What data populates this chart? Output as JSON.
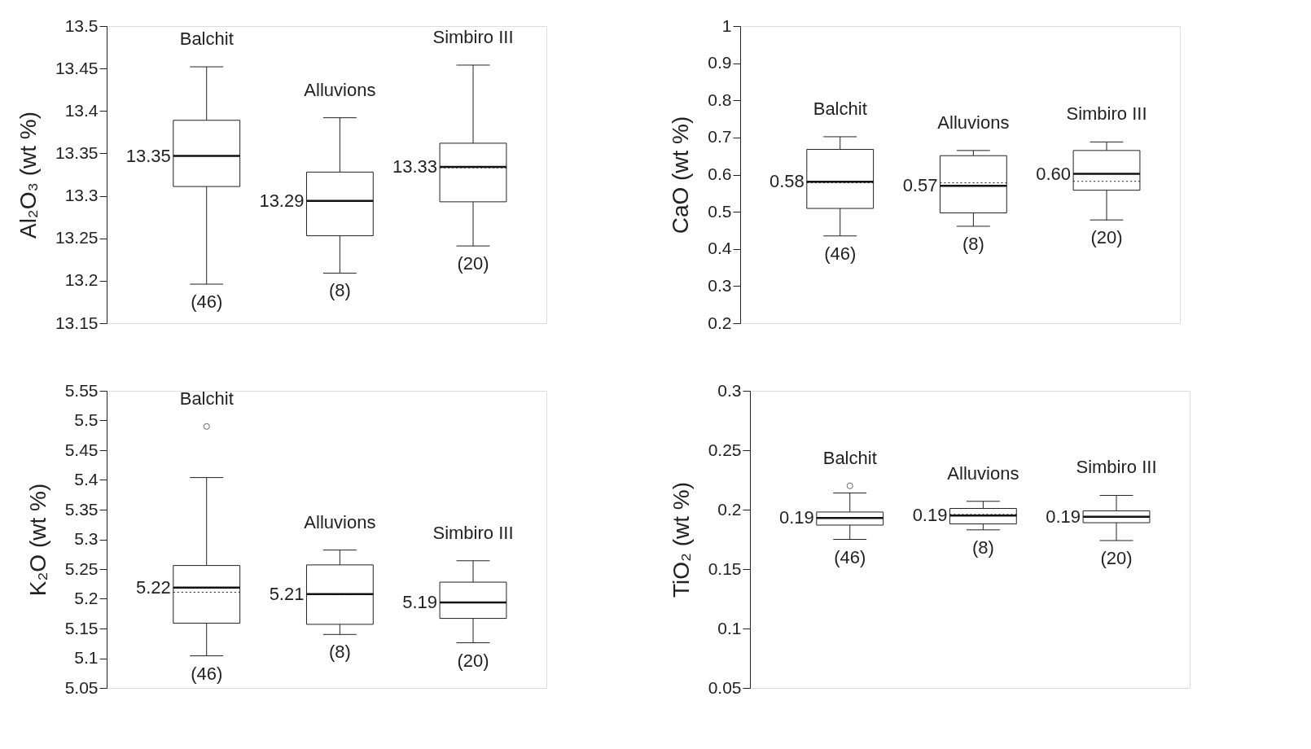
{
  "chart_data": [
    {
      "type": "box",
      "ylabel": "Al₂O₃ (wt %)",
      "categories": [
        "Balchit",
        "Alluvions",
        "Simbiro III"
      ],
      "ylim": [
        13.15,
        13.5
      ],
      "yticks": [
        13.15,
        13.2,
        13.25,
        13.3,
        13.35,
        13.4,
        13.45,
        13.5
      ],
      "boxes": [
        {
          "low": 13.196,
          "q1": 13.311,
          "median": 13.347,
          "q3": 13.389,
          "high": 13.452
        },
        {
          "low": 13.209,
          "q1": 13.253,
          "median": 13.294,
          "q3": 13.328,
          "high": 13.392
        },
        {
          "low": 13.241,
          "q1": 13.293,
          "median": 13.334,
          "q3": 13.362,
          "high": 13.454,
          "mean": 13.333
        }
      ],
      "annotations": [
        {
          "text": "13.35",
          "x": "Balchit",
          "y": 13.347
        },
        {
          "text": "13.29",
          "x": "Alluvions",
          "y": 13.294
        },
        {
          "text": "13.33",
          "x": "Simbiro III",
          "y": 13.334
        },
        "(46)",
        "(8)",
        "(20)"
      ]
    },
    {
      "type": "box",
      "ylabel": "CaO (wt %)",
      "categories": [
        "Balchit",
        "Alluvions",
        "Simbiro III"
      ],
      "ylim": [
        0.2,
        1
      ],
      "yticks": [
        0.2,
        0.3,
        0.4,
        0.5,
        0.6,
        0.7,
        0.8,
        0.9,
        1
      ],
      "boxes": [
        {
          "low": 0.435,
          "q1": 0.509,
          "median": 0.581,
          "q3": 0.668,
          "high": 0.702,
          "mean": 0.578
        },
        {
          "low": 0.461,
          "q1": 0.497,
          "median": 0.57,
          "q3": 0.651,
          "high": 0.665,
          "mean": 0.578
        },
        {
          "low": 0.478,
          "q1": 0.558,
          "median": 0.602,
          "q3": 0.665,
          "high": 0.688,
          "mean": 0.582
        }
      ],
      "annotations": [
        {
          "text": "0.58",
          "x": "Balchit",
          "y": 0.581
        },
        {
          "text": "0.57",
          "x": "Alluvions",
          "y": 0.57
        },
        {
          "text": "0.60",
          "x": "Simbiro III",
          "y": 0.602
        },
        "(46)",
        "(8)",
        "(20)"
      ]
    },
    {
      "type": "box",
      "ylabel": "K₂O (wt %)",
      "categories": [
        "Balchit",
        "Alluvions",
        "Simbiro III"
      ],
      "ylim": [
        5.05,
        5.55
      ],
      "yticks": [
        5.05,
        5.1,
        5.15,
        5.2,
        5.25,
        5.3,
        5.35,
        5.4,
        5.45,
        5.5,
        5.55
      ],
      "boxes": [
        {
          "low": 5.104,
          "q1": 5.159,
          "median": 5.219,
          "q3": 5.256,
          "high": 5.404,
          "mean": 5.211,
          "outliers": [
            5.49
          ]
        },
        {
          "low": 5.14,
          "q1": 5.157,
          "median": 5.208,
          "q3": 5.257,
          "high": 5.282,
          "mean": 5.207
        },
        {
          "low": 5.126,
          "q1": 5.167,
          "median": 5.194,
          "q3": 5.228,
          "high": 5.264
        }
      ],
      "annotations": [
        {
          "text": "5.22",
          "x": "Balchit",
          "y": 5.219
        },
        {
          "text": "5.21",
          "x": "Alluvions",
          "y": 5.208
        },
        {
          "text": "5.19",
          "x": "Simbiro III",
          "y": 5.194
        },
        "(46)",
        "(8)",
        "(20)"
      ]
    },
    {
      "type": "box",
      "ylabel": "TiO₂ (wt %)",
      "categories": [
        "Balchit",
        "Alluvions",
        "Simbiro III"
      ],
      "ylim": [
        0.05,
        0.3
      ],
      "yticks": [
        0.05,
        0.1,
        0.15,
        0.2,
        0.25,
        0.3
      ],
      "boxes": [
        {
          "low": 0.175,
          "q1": 0.187,
          "median": 0.193,
          "q3": 0.198,
          "high": 0.214,
          "outliers": [
            0.22
          ]
        },
        {
          "low": 0.183,
          "q1": 0.188,
          "median": 0.195,
          "q3": 0.201,
          "high": 0.207,
          "mean": 0.196
        },
        {
          "low": 0.174,
          "q1": 0.189,
          "median": 0.194,
          "q3": 0.199,
          "high": 0.212
        }
      ],
      "annotations": [
        {
          "text": "0.19",
          "x": "Balchit",
          "y": 0.193
        },
        {
          "text": "0.19",
          "x": "Alluvions",
          "y": 0.195
        },
        {
          "text": "0.19",
          "x": "Simbiro III",
          "y": 0.194
        },
        "(46)",
        "(8)",
        "(20)"
      ]
    }
  ]
}
